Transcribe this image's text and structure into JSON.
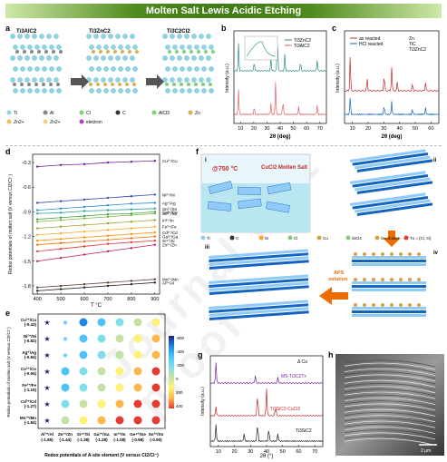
{
  "banner": "Molten Salt Lewis Acidic Etching",
  "watermark": "Journal Pre-proof",
  "panel_a": {
    "label": "a",
    "structures": [
      "Ti3AlC2",
      "Ti3ZnC2",
      "Ti3C2Cl2"
    ],
    "legend": [
      "Ti",
      "Al",
      "Cl",
      "C",
      "AlCl3",
      "Zn",
      "Zn2+",
      "Zn2+",
      "electron"
    ]
  },
  "panel_b": {
    "label": "b",
    "xlabel": "2θ (deg)",
    "ylabel": "Intensity (a.u.)",
    "xticks": [
      "10",
      "20",
      "30",
      "40",
      "50",
      "60",
      "70"
    ],
    "legend": [
      "Ti3ZnC2",
      "Ti3AlC2"
    ],
    "peaks": [
      "(002)",
      "(004)",
      "(101)",
      "(103)",
      "(104)",
      "(105)",
      "(106)",
      "(107)",
      "(108)",
      "(109)",
      "(110)"
    ]
  },
  "panel_c": {
    "label": "c",
    "xlabel": "2θ (deg)",
    "ylabel": "Intensity (a.u.)",
    "xticks": [
      "10",
      "20",
      "30",
      "40",
      "50",
      "60"
    ],
    "legend": [
      "as reacted",
      "HCl reacted"
    ],
    "markers": [
      "Zn",
      "TiC",
      "Ti3ZnC2"
    ],
    "peaks": [
      "(002)",
      "(004)",
      "(006)",
      "(101)",
      "(103)",
      "(110)",
      "(105)",
      "(1011)"
    ]
  },
  "panel_d": {
    "label": "d",
    "xlabel": "T °C",
    "ylabel": "Redox potentials of molten salt (V versus Cl2/Cl⁻)",
    "chart_data": {
      "type": "line",
      "x": [
        400,
        500,
        600,
        700,
        800,
        900
      ],
      "ylim": [
        -1.9,
        -0.2
      ],
      "yticks": [
        "-0.3",
        "-0.6",
        "-0.9",
        "-1.2",
        "-1.5",
        "-1.8"
      ],
      "series": [
        {
          "name": "Cu²⁺/Cu",
          "color": "#6a1b9a",
          "values": [
            -0.35,
            -0.33,
            -0.32,
            -0.3,
            -0.29,
            -0.28
          ]
        },
        {
          "name": "Ni²⁺/Ni",
          "color": "#3949ab",
          "values": [
            -0.79,
            -0.77,
            -0.75,
            -0.73,
            -0.71,
            -0.69
          ]
        },
        {
          "name": "Ag⁺/Ag",
          "color": "#1e88e5",
          "values": [
            -0.88,
            -0.86,
            -0.84,
            -0.82,
            -0.8,
            -0.79
          ]
        },
        {
          "name": "Sn²⁺/Sn",
          "color": "#26a69a",
          "values": [
            -0.92,
            -0.91,
            -0.89,
            -0.88,
            -0.87,
            -0.86
          ]
        },
        {
          "name": "Co²⁺/Co",
          "color": "#43a047",
          "values": [
            -0.99,
            -0.97,
            -0.95,
            -0.93,
            -0.92,
            -0.9
          ]
        },
        {
          "name": "Sb³⁺/Sb",
          "color": "#7cb342",
          "values": [
            -1.02,
            -1.0,
            -0.98,
            -0.96,
            -0.94,
            -0.92
          ]
        },
        {
          "name": "In³⁺/In",
          "color": "#9e9d24",
          "values": [
            -1.1,
            -1.08,
            -1.06,
            -1.04,
            -1.02,
            -1.0
          ]
        },
        {
          "name": "Fe²⁺/Fe",
          "color": "#f9a825",
          "values": [
            -1.18,
            -1.16,
            -1.14,
            -1.12,
            -1.1,
            -1.08
          ]
        },
        {
          "name": "Cd²⁺/Cd",
          "color": "#ff8f00",
          "values": [
            -1.25,
            -1.23,
            -1.21,
            -1.19,
            -1.17,
            -1.15
          ]
        },
        {
          "name": "Ga³⁺/Ga",
          "color": "#ef6c00",
          "values": [
            -1.3,
            -1.28,
            -1.26,
            -1.24,
            -1.22,
            -1.2
          ]
        },
        {
          "name": "Si⁴⁺/Si",
          "color": "#e53935",
          "values": [
            -1.38,
            -1.35,
            -1.32,
            -1.29,
            -1.27,
            -1.25
          ]
        },
        {
          "name": "Zn²⁺/Zn",
          "color": "#c2185b",
          "values": [
            -1.5,
            -1.46,
            -1.42,
            -1.38,
            -1.34,
            -1.3
          ]
        },
        {
          "name": "Mn²⁺/Mn",
          "color": "#5d4037",
          "values": [
            -1.82,
            -1.8,
            -1.78,
            -1.76,
            -1.74,
            -1.72
          ]
        },
        {
          "name": "Al³⁺/Al",
          "color": "#212121",
          "values": [
            -1.86,
            -1.84,
            -1.82,
            -1.8,
            -1.78,
            -1.76
          ]
        }
      ]
    }
  },
  "panel_e": {
    "label": "e",
    "xlabel": "Redox potentials of A-site element (V versus Cl2/Cl⁻)",
    "ylabel": "Redox potentials of molten salt (V versus Cl2/Cl⁻)",
    "rows": [
      "Cu²⁺/Cu\n(-0.43)",
      "Ni²⁺/Ni\n(-0.82)",
      "Ag⁺/Ag\n(-0.84)",
      "Co²⁺/Co\n(-0.94)",
      "Fe²⁺/Fe\n(-1.15)",
      "Cd²⁺/Cd\n(-1.27)",
      "Mn²⁺/Mn\n(-1.84)"
    ],
    "cols": [
      "Al³⁺/Al\n(-1.85)",
      "Zn²⁺/Zn\n(-1.44)",
      "Si⁴⁺/Si\n(-1.38)",
      "Ga³⁺/Ga\n(-1.28)",
      "In³⁺/In\n(-1.08)",
      "Ge⁴⁺/Ge\n(-0.98)",
      "Sn²⁺/Sn\n(-0.90)"
    ],
    "colorbar_ticks": [
      "-600",
      "-400",
      "-200",
      "0",
      "200",
      "400"
    ]
  },
  "panel_f": {
    "label": "f",
    "sub": [
      "i",
      "ii",
      "iii",
      "iv"
    ],
    "temp": "@750 °C",
    "salt": "CuCl2 Molten Salt",
    "aps": "APS\nsolution",
    "legend": [
      "Ti",
      "C",
      "Si",
      "Cl",
      "Cu",
      "SiCl4",
      "Cu cluster",
      "Tx = (Cl, O)"
    ]
  },
  "panel_g": {
    "label": "g",
    "xlabel": "2θ (°)",
    "ylabel": "Intensity (a.u.)",
    "xticks": [
      "10",
      "20",
      "30",
      "40",
      "50",
      "60",
      "70"
    ],
    "labels": [
      "Δ Cu",
      "MS-Ti3C2Tx",
      "Ti3SiC2-CuCl2",
      "Ti3SiC2"
    ],
    "peaks": [
      "(002)",
      "(004)",
      "(006)",
      "(104)",
      "(008)"
    ]
  },
  "panel_h": {
    "label": "h",
    "scale": "2 μm"
  }
}
